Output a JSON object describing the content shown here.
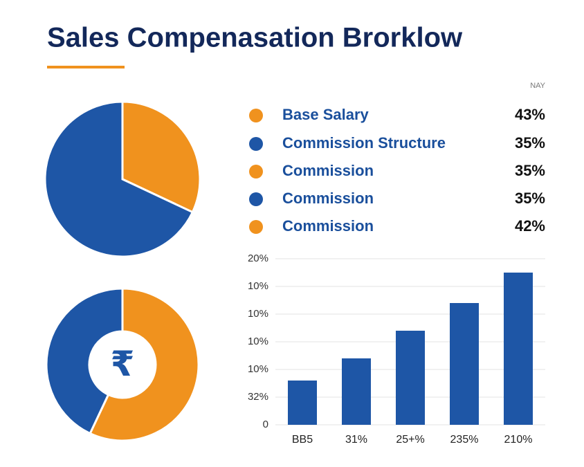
{
  "header": {
    "title": "Sales Compenasation Brorklow",
    "tag": "NAY"
  },
  "legend": {
    "items": [
      {
        "name": "Base Salary",
        "value": "43%",
        "color": "#f0921e"
      },
      {
        "name": "Commission Structure",
        "value": "35%",
        "color": "#1e56a6"
      },
      {
        "name": "Commission",
        "value": "35%",
        "color": "#f0921e"
      },
      {
        "name": "Commission",
        "value": "35%",
        "color": "#1e56a6"
      },
      {
        "name": "Commission",
        "value": "42%",
        "color": "#f0921e"
      }
    ]
  },
  "chart_data": [
    {
      "type": "pie",
      "values": [
        32,
        68
      ],
      "colors": [
        "#f0921e",
        "#1e56a6"
      ]
    },
    {
      "type": "donut",
      "center_label": "₹",
      "values": [
        57,
        43
      ],
      "colors": [
        "#f0921e",
        "#1e56a6"
      ]
    },
    {
      "type": "bar",
      "categories": [
        "BB5",
        "31%",
        "25+%",
        "235%",
        "210%"
      ],
      "values": [
        1.6,
        2.4,
        3.4,
        4.4,
        5.5
      ],
      "color": "#1e56a6",
      "ylim": [
        0,
        6
      ],
      "yticks": [
        0,
        {
          "value": 1,
          "label": "32%"
        },
        {
          "value": 2,
          "label": "10%"
        },
        {
          "value": 3,
          "label": "10%"
        },
        {
          "value": 4,
          "label": "10%"
        },
        {
          "value": 5,
          "label": "10%"
        },
        {
          "value": 6,
          "label": "20%"
        }
      ],
      "grid": true
    }
  ]
}
